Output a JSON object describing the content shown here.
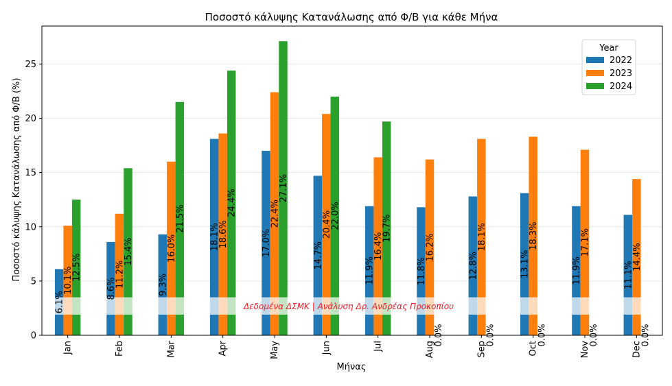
{
  "chart_data": {
    "type": "bar",
    "title": "Ποσοστό κάλυψης Κατανάλωσης από Φ/Β για κάθε Μήνα",
    "xlabel": "Μήνας",
    "ylabel": "Ποσοστό κάλυψης Κατανάλωσης από Φ/Β (%)",
    "categories": [
      "Jan",
      "Feb",
      "Mar",
      "Apr",
      "May",
      "Jun",
      "Jul",
      "Aug",
      "Sep",
      "Oct",
      "Nov",
      "Dec"
    ],
    "ylim": [
      0,
      28.5
    ],
    "yticks": [
      "0",
      "5",
      "10",
      "15",
      "20",
      "25"
    ],
    "grid": "horizontal",
    "legend": {
      "title": "Year",
      "placement": "top-right"
    },
    "series": [
      {
        "name": "2022",
        "color": "#1f77b4",
        "values": [
          6.1,
          8.6,
          9.3,
          18.1,
          17.0,
          14.7,
          11.9,
          11.8,
          12.8,
          13.1,
          11.9,
          11.1
        ],
        "labels": [
          "6.1%",
          "8.6%",
          "9.3%",
          "18.1%",
          "17.0%",
          "14.7%",
          "11.9%",
          "11.8%",
          "12.8%",
          "13.1%",
          "11.9%",
          "11.1%"
        ]
      },
      {
        "name": "2023",
        "color": "#ff7f0e",
        "values": [
          10.1,
          11.2,
          16.0,
          18.6,
          22.4,
          20.4,
          16.4,
          16.2,
          18.1,
          18.3,
          17.1,
          14.4
        ],
        "labels": [
          "10.1%",
          "11.2%",
          "16.0%",
          "18.6%",
          "22.4%",
          "20.4%",
          "16.4%",
          "16.2%",
          "18.1%",
          "18.3%",
          "17.1%",
          "14.4%"
        ]
      },
      {
        "name": "2024",
        "color": "#2ca02c",
        "values": [
          12.5,
          15.4,
          21.5,
          24.4,
          27.1,
          22.0,
          19.7,
          0,
          0,
          0,
          0,
          0
        ],
        "labels": [
          "12.5%",
          "15.4%",
          "21.5%",
          "24.4%",
          "27.1%",
          "22.0%",
          "19.7%",
          "0.0%",
          "0.0%",
          "0.0%",
          "0.0%",
          "0.0%"
        ]
      }
    ],
    "annotation": {
      "text": "Δεδομένα ΔΣΜΚ | Ανάλυση Δρ. Ανδρέας Προκοπίου",
      "color": "#e8202a"
    }
  }
}
